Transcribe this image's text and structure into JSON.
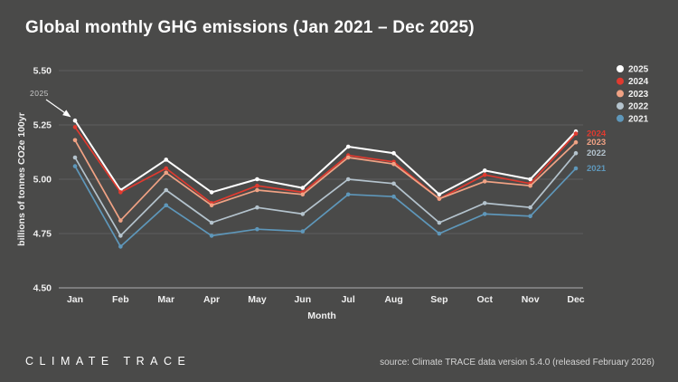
{
  "header": {
    "title": "Global monthly GHG emissions (Jan 2021 – Dec 2025)"
  },
  "colors": {
    "background": "#4a4a49",
    "grid": "#5e5e5e",
    "axis": "#9b9b9b",
    "tick_text": "#f0f0f0",
    "annotation_text": "#c8c8c8",
    "legend_text": "#f2f2f2"
  },
  "chart_data": {
    "type": "line",
    "title": "Global monthly GHG emissions (Jan 2021 – Dec 2025)",
    "xlabel": "Month",
    "ylabel": "billions of tonnes CO2e 100yr",
    "categories": [
      "Jan",
      "Feb",
      "Mar",
      "Apr",
      "May",
      "Jun",
      "Jul",
      "Aug",
      "Sep",
      "Oct",
      "Nov",
      "Dec"
    ],
    "ylim": [
      4.5,
      5.5
    ],
    "yticks": [
      5.5,
      5.25,
      5.0,
      4.75,
      4.5
    ],
    "grid": true,
    "legend_position": "top-right",
    "annotation": {
      "text": "2025",
      "target_series": "2025",
      "target_month": "Jan"
    },
    "series": [
      {
        "name": "2025",
        "color": "#ffffff",
        "end_label": "",
        "values": [
          5.27,
          4.95,
          5.09,
          4.94,
          5.0,
          4.96,
          5.15,
          5.12,
          4.93,
          5.04,
          5.0,
          5.22
        ]
      },
      {
        "name": "2024",
        "color": "#e03a2f",
        "end_label": "2024",
        "values": [
          5.24,
          4.94,
          5.05,
          4.89,
          4.97,
          4.94,
          5.11,
          5.08,
          4.91,
          5.02,
          4.98,
          5.21
        ]
      },
      {
        "name": "2023",
        "color": "#f0a284",
        "end_label": "2023",
        "values": [
          5.18,
          4.81,
          5.03,
          4.88,
          4.95,
          4.93,
          5.1,
          5.07,
          4.91,
          4.99,
          4.97,
          5.17
        ]
      },
      {
        "name": "2022",
        "color": "#b4c3cd",
        "end_label": "2022",
        "values": [
          5.1,
          4.74,
          4.95,
          4.8,
          4.87,
          4.84,
          5.0,
          4.98,
          4.8,
          4.89,
          4.87,
          5.12
        ]
      },
      {
        "name": "2021",
        "color": "#5e97ba",
        "end_label": "2021",
        "values": [
          5.06,
          4.69,
          4.88,
          4.74,
          4.77,
          4.76,
          4.93,
          4.92,
          4.75,
          4.84,
          4.83,
          5.05
        ]
      }
    ]
  },
  "footer": {
    "logo": "CLIMATE TRACE",
    "source": "source: Climate TRACE data version 5.4.0 (released February 2026)"
  }
}
